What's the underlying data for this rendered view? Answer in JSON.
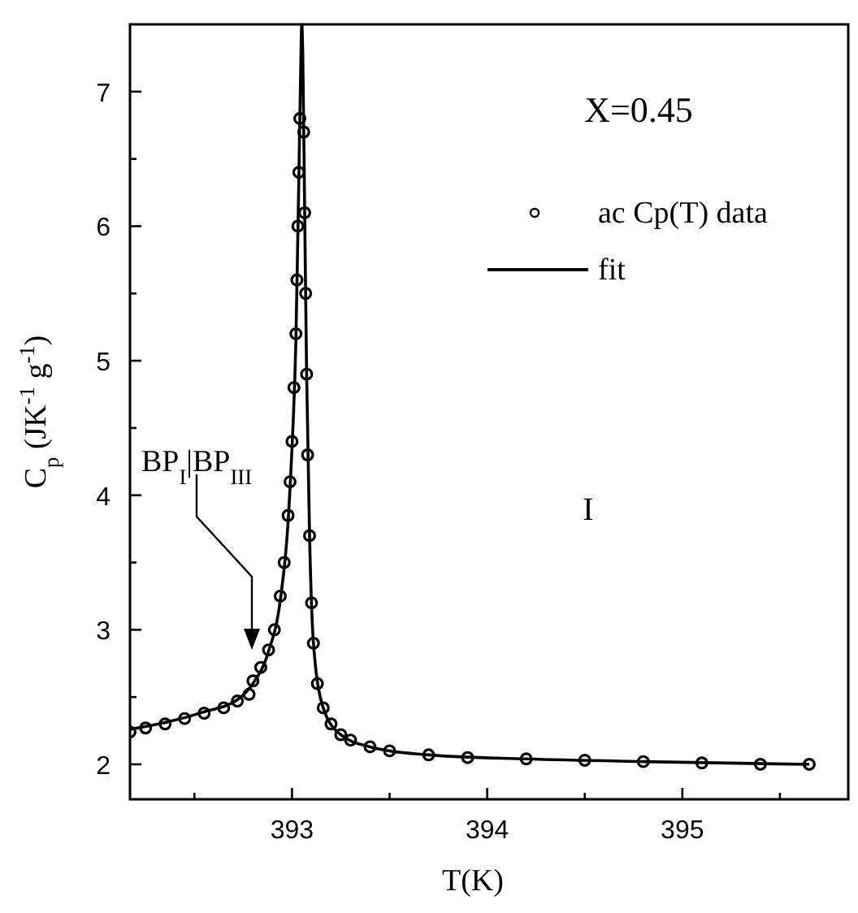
{
  "chart_data": {
    "type": "scatter",
    "xlabel": "T(K)",
    "ylabel": "C$_{p}$ (JK$^{-1}$ g$^{-1}$)",
    "xlim": [
      392.17,
      395.85
    ],
    "ylim": [
      1.74,
      7.5
    ],
    "xticks": [
      {
        "value": 392.5,
        "label": null
      },
      393,
      {
        "value": 393.5,
        "label": null
      },
      394,
      {
        "value": 394.5,
        "label": null
      },
      395,
      {
        "value": 395.5,
        "label": null
      }
    ],
    "yticks": [
      2,
      {
        "value": 2.5,
        "label": null
      },
      3,
      {
        "value": 3.5,
        "label": null
      },
      4,
      {
        "value": 4.5,
        "label": null
      },
      5,
      {
        "value": 5.5,
        "label": null
      },
      6,
      {
        "value": 6.5,
        "label": null
      },
      7
    ],
    "series": [
      {
        "name": "ac Cp(T) data",
        "color": "#000000",
        "marker": "circle",
        "x": [
          392.17,
          392.25,
          392.35,
          392.45,
          392.55,
          392.65,
          392.72,
          392.78,
          392.8,
          392.84,
          392.88,
          392.91,
          392.94,
          392.96,
          392.98,
          392.99,
          393.0,
          393.01,
          393.02,
          393.025,
          393.03,
          393.035,
          393.04,
          393.06,
          393.065,
          393.07,
          393.075,
          393.08,
          393.09,
          393.1,
          393.11,
          393.13,
          393.16,
          393.2,
          393.25,
          393.3,
          393.4,
          393.5,
          393.7,
          393.9,
          394.2,
          394.5,
          394.8,
          395.1,
          395.4,
          395.65
        ],
        "values": [
          2.24,
          2.27,
          2.3,
          2.34,
          2.38,
          2.42,
          2.47,
          2.52,
          2.62,
          2.72,
          2.85,
          3.0,
          3.25,
          3.5,
          3.85,
          4.1,
          4.4,
          4.8,
          5.2,
          5.6,
          6.0,
          6.4,
          6.8,
          6.7,
          6.1,
          5.5,
          4.9,
          4.3,
          3.7,
          3.2,
          2.9,
          2.6,
          2.42,
          2.3,
          2.22,
          2.18,
          2.13,
          2.1,
          2.07,
          2.05,
          2.04,
          2.03,
          2.02,
          2.01,
          2.0,
          2.0
        ]
      },
      {
        "name": "fit",
        "type": "line",
        "color": "#000000",
        "line_style": "solid",
        "x": [
          392.17,
          392.35,
          392.55,
          392.72,
          392.8,
          392.88,
          392.94,
          392.98,
          393.0,
          393.02,
          393.035,
          393.045,
          393.05,
          393.055,
          393.065,
          393.075,
          393.09,
          393.11,
          393.16,
          393.25,
          393.4,
          393.7,
          394.2,
          394.8,
          395.65
        ],
        "values": [
          2.26,
          2.31,
          2.39,
          2.48,
          2.6,
          2.84,
          3.22,
          3.8,
          4.35,
          5.15,
          6.35,
          7.2,
          7.5,
          7.3,
          6.1,
          4.9,
          3.7,
          2.9,
          2.42,
          2.22,
          2.13,
          2.07,
          2.04,
          2.02,
          2.0
        ]
      }
    ],
    "legend": "top right",
    "annotations": [
      "X=0.45",
      "BP$_{I}$|BP$_{III}$",
      "I"
    ]
  }
}
